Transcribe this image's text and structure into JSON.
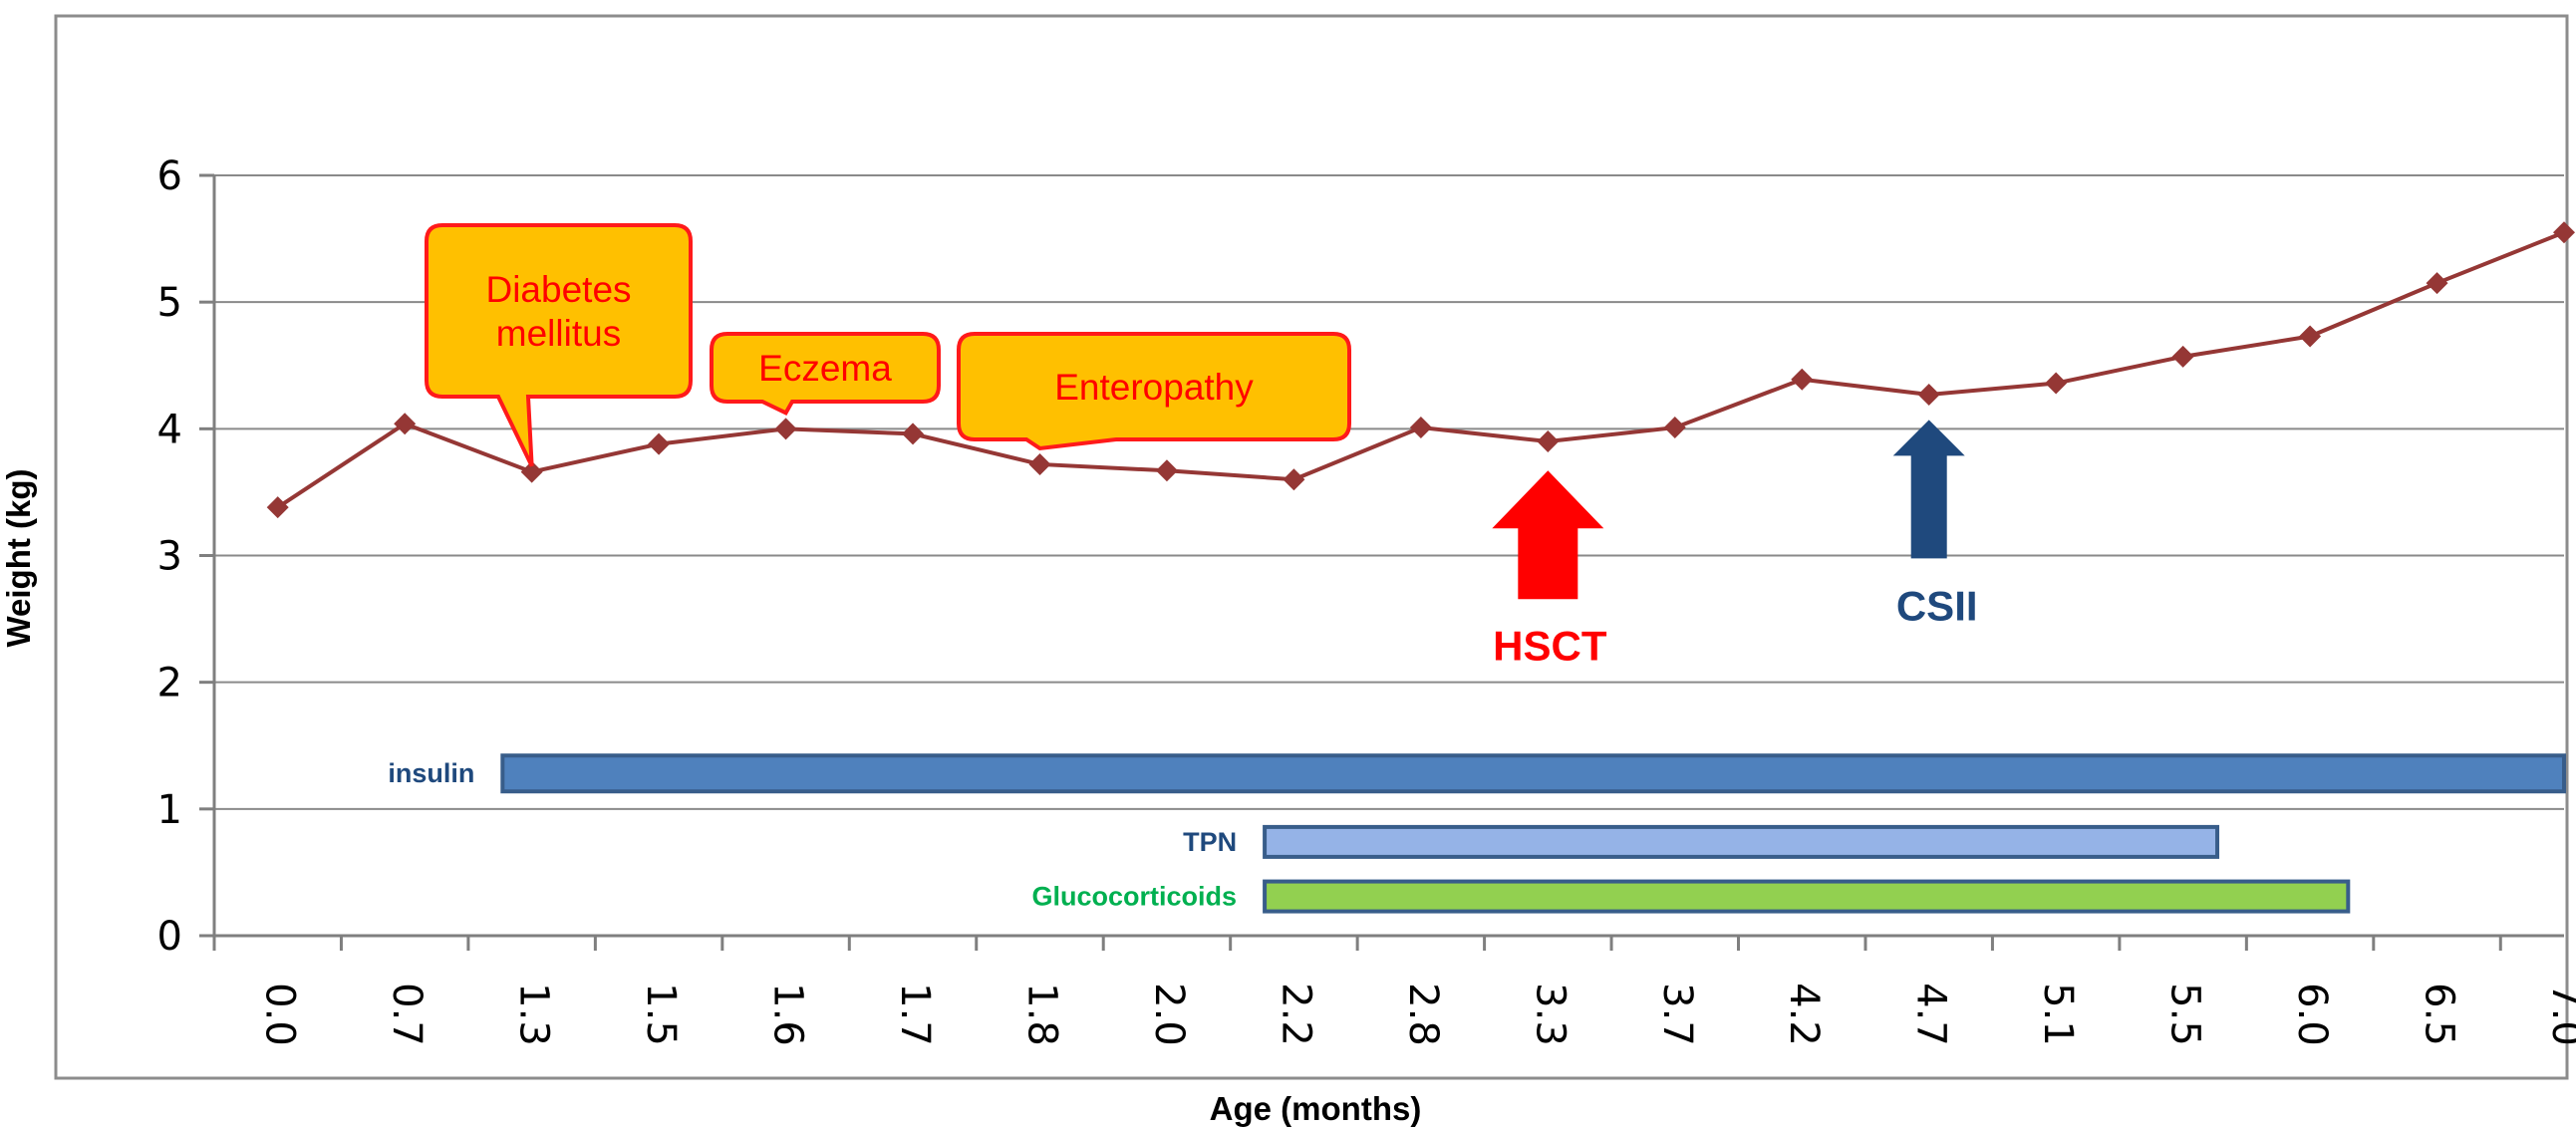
{
  "chart_data": {
    "type": "line",
    "xlabel": "Age (months)",
    "ylabel": "Weight (kg)",
    "ylim": [
      0,
      6
    ],
    "yticks": [
      0,
      1,
      2,
      3,
      4,
      5,
      6
    ],
    "grid": true,
    "categories": [
      "0.0",
      "0.7",
      "1.3",
      "1.5",
      "1.6",
      "1.7",
      "1.8",
      "2.0",
      "2.2",
      "2.8",
      "3.3",
      "3.7",
      "4.2",
      "4.7",
      "5.1",
      "5.5",
      "6.0",
      "6.5",
      "7.0"
    ],
    "series": [
      {
        "color": "#953735",
        "values": [
          3.38,
          4.04,
          3.66,
          3.88,
          4.0,
          3.96,
          3.72,
          3.67,
          3.6,
          4.01,
          3.9,
          4.01,
          4.39,
          4.27,
          4.36,
          4.57,
          4.73,
          5.15,
          5.55
        ]
      }
    ],
    "callouts": [
      {
        "text_lines": [
          "Diabetes",
          "mellitus"
        ],
        "point_index": 2,
        "fill": "#ffc000",
        "text_color": "#ff0000"
      },
      {
        "text_lines": [
          "Eczema"
        ],
        "point_index": 4,
        "fill": "#ffc000",
        "text_color": "#ff0000"
      },
      {
        "text_lines": [
          "Enteropathy"
        ],
        "point_index": 6,
        "fill": "#ffc000",
        "text_color": "#ff0000"
      }
    ],
    "arrows": [
      {
        "label": "HSCT",
        "at_index": 10,
        "color": "#ff0000",
        "tip_value": 3.67
      },
      {
        "label": "CSII",
        "at_index": 13,
        "color": "#1f497d",
        "tip_value": 4.07
      }
    ],
    "treatment_bars": [
      {
        "label": "insulin",
        "y": 1.28,
        "start_index": 1.77,
        "end_index": 18.5,
        "fill": "#4f81bd",
        "stroke": "#385d8a",
        "label_color": "#1f497d"
      },
      {
        "label": "TPN",
        "y": 0.74,
        "start_index": 7.77,
        "end_index": 15.27,
        "fill": "#95b3e7",
        "stroke": "#385d8a",
        "label_color": "#1f497d"
      },
      {
        "label": "Glucocorticoids",
        "y": 0.31,
        "start_index": 7.77,
        "end_index": 16.3,
        "fill": "#92d050",
        "stroke": "#385d8a",
        "label_color": "#00b050"
      }
    ]
  }
}
